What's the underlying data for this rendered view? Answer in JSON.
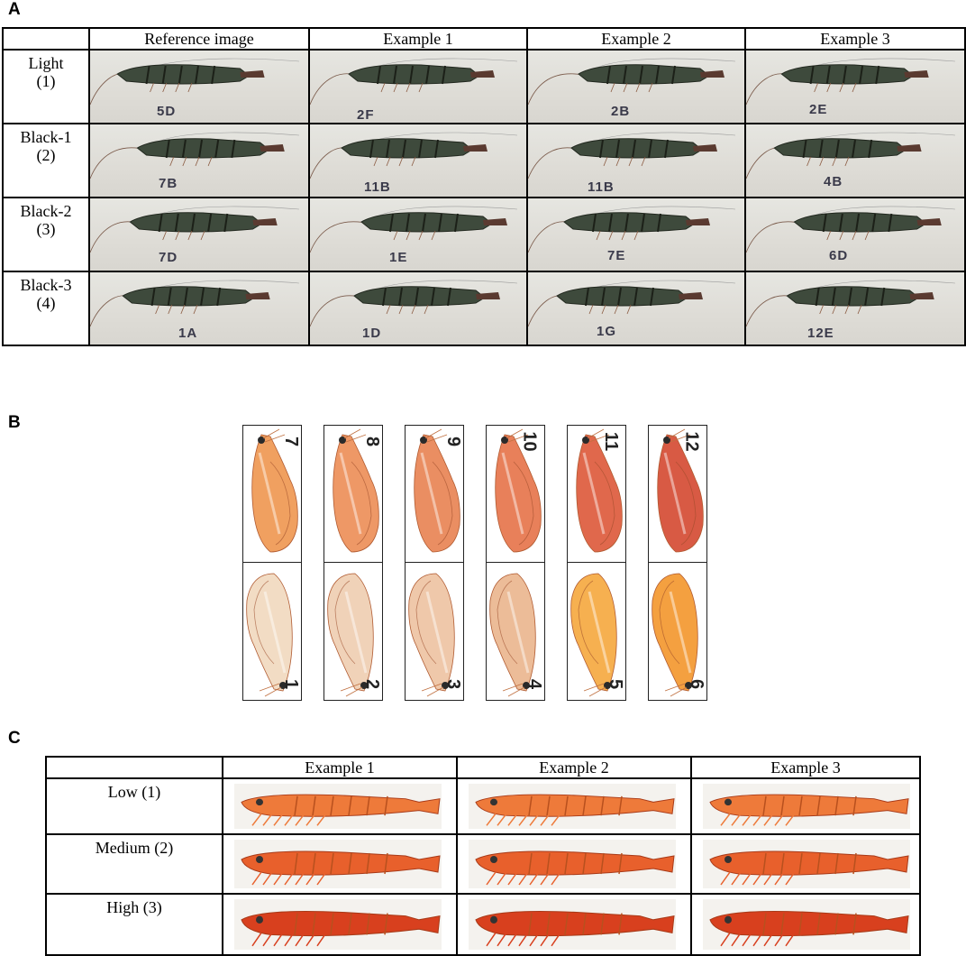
{
  "panelA": {
    "label": "A",
    "headers": [
      "",
      "Reference image",
      "Example 1",
      "Example 2",
      "Example 3"
    ],
    "rows": [
      {
        "name": "Light",
        "code": "(1)",
        "tags": [
          "5D",
          "2F",
          "2B",
          "2E"
        ]
      },
      {
        "name": "Black-1",
        "code": "(2)",
        "tags": [
          "7B",
          "11B",
          "11B",
          "4B"
        ]
      },
      {
        "name": "Black-2",
        "code": "(3)",
        "tags": [
          "7D",
          "1E",
          "7E",
          "6D"
        ]
      },
      {
        "name": "Black-3",
        "code": "(4)",
        "tags": [
          "1A",
          "1D",
          "1G",
          "12E"
        ]
      }
    ]
  },
  "panelB": {
    "label": "B",
    "top_numbers": [
      "7",
      "8",
      "9",
      "10",
      "11",
      "12"
    ],
    "bottom_numbers": [
      "1",
      "2",
      "3",
      "4",
      "5",
      "6"
    ],
    "top_colors": [
      "#f0a060",
      "#ee9866",
      "#ea8e62",
      "#e8805a",
      "#e0684c",
      "#d85a44"
    ],
    "bottom_colors": [
      "#f2dcc4",
      "#f0d2b8",
      "#efc8aa",
      "#ecbc98",
      "#f6b050",
      "#f4a040"
    ]
  },
  "panelC": {
    "label": "C",
    "headers": [
      "",
      "Example 1",
      "Example 2",
      "Example 3"
    ],
    "rows": [
      {
        "name": "Low (1)",
        "color": "#ee7a3a"
      },
      {
        "name": "Medium (2)",
        "color": "#e8602c"
      },
      {
        "name": "High (3)",
        "color": "#d8401e"
      }
    ]
  }
}
